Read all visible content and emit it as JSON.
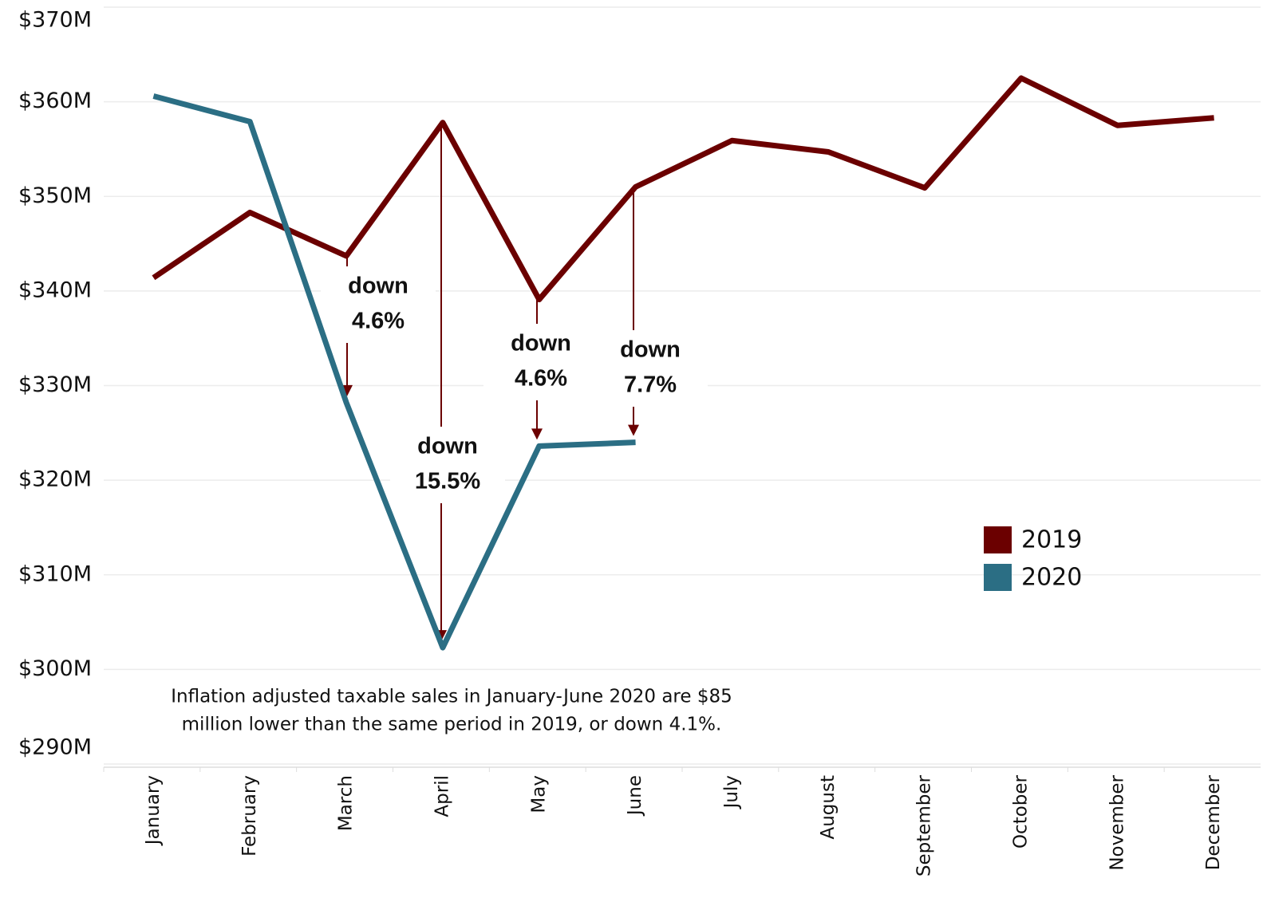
{
  "chart_data": {
    "type": "line",
    "categories": [
      "January",
      "February",
      "March",
      "April",
      "May",
      "June",
      "July",
      "August",
      "September",
      "October",
      "November",
      "December"
    ],
    "series": [
      {
        "name": "2019",
        "color": "#6b0000",
        "values": [
          341.4,
          348.3,
          343.7,
          357.8,
          339.1,
          351.0,
          355.9,
          354.7,
          350.9,
          362.5,
          357.5,
          358.3
        ]
      },
      {
        "name": "2020",
        "color": "#2b6e84",
        "values": [
          360.6,
          357.9,
          328.2,
          302.3,
          323.6,
          324.0,
          null,
          null,
          null,
          null,
          null,
          null
        ]
      }
    ],
    "ylim": [
      290,
      370
    ],
    "yticks": [
      {
        "value": 290,
        "label": "$290M"
      },
      {
        "value": 300,
        "label": "$300M"
      },
      {
        "value": 310,
        "label": "$310M"
      },
      {
        "value": 320,
        "label": "$320M"
      },
      {
        "value": 330,
        "label": "$330M"
      },
      {
        "value": 340,
        "label": "$340M"
      },
      {
        "value": 350,
        "label": "$350M"
      },
      {
        "value": 360,
        "label": "$360M"
      },
      {
        "value": 370,
        "label": "$370M"
      }
    ],
    "grid": true,
    "legend": "right",
    "annotations": [
      [
        "down",
        "4.6%"
      ],
      [
        "down",
        "15.5%"
      ],
      [
        "down",
        "4.6%"
      ],
      [
        "down",
        "7.7%"
      ]
    ],
    "note": [
      "Inflation adjusted taxable sales in January-June 2020 are $85",
      "million lower than the same period in 2019, or down 4.1%."
    ]
  }
}
